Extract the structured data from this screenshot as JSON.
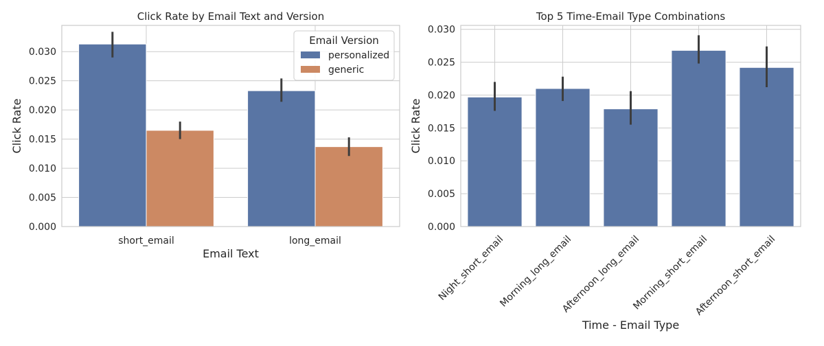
{
  "chart_data": [
    {
      "type": "bar",
      "title": "Click Rate by Email Text and Version",
      "xlabel": "Email Text",
      "ylabel": "Click Rate",
      "categories": [
        "short_email",
        "long_email"
      ],
      "ylim": [
        0,
        0.0345
      ],
      "yticks": [
        "0.000",
        "0.005",
        "0.010",
        "0.015",
        "0.020",
        "0.025",
        "0.030"
      ],
      "legend": {
        "title": "Email Version",
        "placement": "top-right"
      },
      "grid": true,
      "series": [
        {
          "name": "personalized",
          "color": "#5975a4",
          "values": [
            0.0313,
            0.0233
          ],
          "ci_low": [
            0.029,
            0.0214
          ],
          "ci_high": [
            0.0334,
            0.0254
          ]
        },
        {
          "name": "generic",
          "color": "#cc8963",
          "values": [
            0.0165,
            0.0137
          ],
          "ci_low": [
            0.015,
            0.0121
          ],
          "ci_high": [
            0.018,
            0.0153
          ]
        }
      ]
    },
    {
      "type": "bar",
      "title": "Top 5 Time-Email Type Combinations",
      "xlabel": "Time - Email Type",
      "ylabel": "Click Rate",
      "categories": [
        "Night_short_email",
        "Morning_long_email",
        "Afternoon_long_email",
        "Morning_short_email",
        "Afternoon_short_email"
      ],
      "ylim": [
        0,
        0.0306
      ],
      "yticks": [
        "0.000",
        "0.005",
        "0.010",
        "0.015",
        "0.020",
        "0.025",
        "0.030"
      ],
      "grid": true,
      "series": [
        {
          "color": "#5975a4",
          "values": [
            0.0197,
            0.021,
            0.0179,
            0.0268,
            0.0242
          ],
          "ci_low": [
            0.0176,
            0.0191,
            0.0155,
            0.0248,
            0.0212
          ],
          "ci_high": [
            0.022,
            0.0228,
            0.0206,
            0.0291,
            0.0274
          ]
        }
      ]
    }
  ]
}
